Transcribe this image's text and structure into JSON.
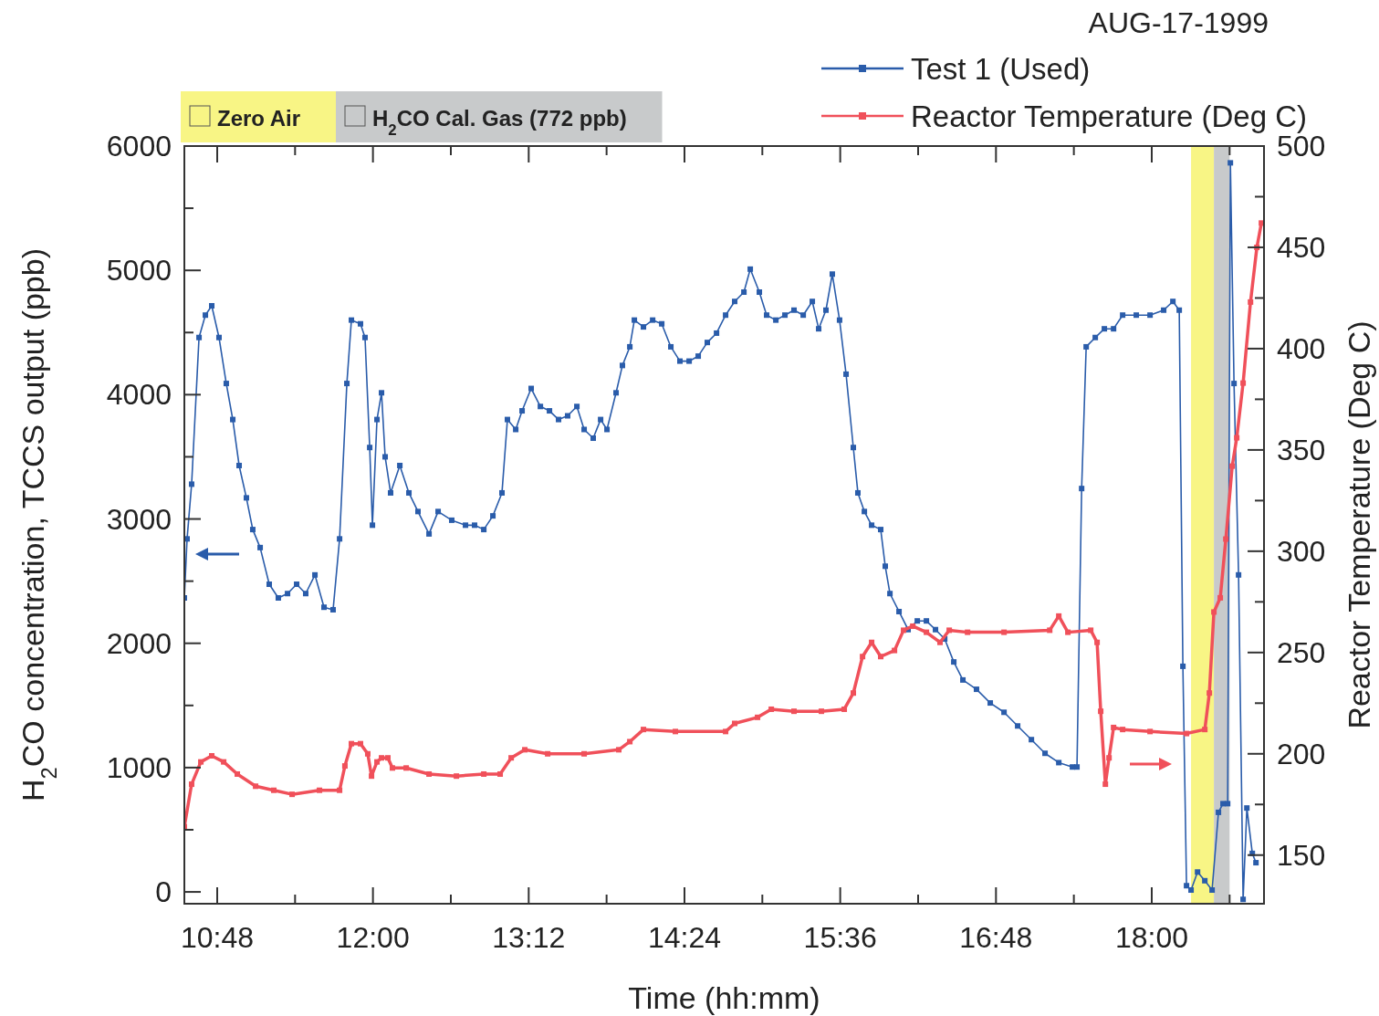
{
  "chart_data": {
    "type": "line",
    "xlabel": "Time (hh:mm)",
    "ylabel": "H$_{2}$CO concentration, TCCS output (ppb)",
    "y2label": "Reactor Temperature (Deg C)",
    "annotations": [
      "AUG-17-1999"
    ],
    "legend": "top right",
    "marker": "square",
    "line_style": "solid",
    "xlim": [
      10.547,
      18.865
    ],
    "xticks": [
      {
        "value": 10.8,
        "label": "10:48"
      },
      {
        "value": 11.4,
        "label": null
      },
      {
        "value": 12,
        "label": "12:00"
      },
      {
        "value": 12.6,
        "label": null
      },
      {
        "value": 13.2,
        "label": "13:12"
      },
      {
        "value": 13.8,
        "label": null
      },
      {
        "value": 14.4,
        "label": "14:24"
      },
      {
        "value": 15,
        "label": null
      },
      {
        "value": 15.6,
        "label": "15:36"
      },
      {
        "value": 16.2,
        "label": null
      },
      {
        "value": 16.8,
        "label": "16:48"
      },
      {
        "value": 17.4,
        "label": null
      },
      {
        "value": 18,
        "label": "18:00"
      },
      {
        "value": 18.6,
        "label": null
      }
    ],
    "ylim": [
      -95,
      6000
    ],
    "yticks": [
      0,
      {
        "value": 500,
        "label": null
      },
      1000,
      {
        "value": 1500,
        "label": null
      },
      2000,
      {
        "value": 2500,
        "label": null
      },
      3000,
      {
        "value": 3500,
        "label": null
      },
      4000,
      {
        "value": 4500,
        "label": null
      },
      5000,
      {
        "value": 5500,
        "label": null
      },
      6000
    ],
    "y2lim": [
      126,
      500
    ],
    "y2ticks": [
      150,
      {
        "value": 175,
        "label": null
      },
      200,
      {
        "value": 225,
        "label": null
      },
      250,
      {
        "value": 275,
        "label": null
      },
      300,
      {
        "value": 325,
        "label": null
      },
      350,
      {
        "value": 375,
        "label": null
      },
      400,
      {
        "value": 425,
        "label": null
      },
      450,
      {
        "value": 475,
        "label": null
      },
      500
    ],
    "bands": [
      {
        "axis": "x",
        "from": 18.303,
        "to": 18.479,
        "label": "Zero Air",
        "color": "#f8f585"
      },
      {
        "axis": "x",
        "from": 18.479,
        "to": 18.6,
        "label": "H$_{2}$CO Cal. Gas (772 ppb)",
        "color": "#c8cacb"
      }
    ],
    "series": [
      {
        "name": "Test 1 (Used)",
        "color": "#2a5caa",
        "x": [
          10.547,
          10.568,
          10.603,
          10.66,
          10.709,
          10.758,
          10.814,
          10.87,
          10.92,
          10.969,
          11.025,
          11.074,
          11.131,
          11.201,
          11.271,
          11.342,
          11.412,
          11.482,
          11.553,
          11.623,
          11.693,
          11.743,
          11.799,
          11.834,
          11.904,
          11.939,
          11.975,
          11.996,
          12.031,
          12.066,
          12.094,
          12.136,
          12.207,
          12.277,
          12.347,
          12.432,
          12.502,
          12.607,
          12.713,
          12.783,
          12.854,
          12.924,
          12.994,
          13.036,
          13.1,
          13.149,
          13.219,
          13.29,
          13.36,
          13.43,
          13.5,
          13.571,
          13.627,
          13.697,
          13.754,
          13.803,
          13.873,
          13.922,
          13.979,
          14.014,
          14.084,
          14.155,
          14.225,
          14.295,
          14.365,
          14.436,
          14.506,
          14.576,
          14.647,
          14.717,
          14.787,
          14.858,
          14.907,
          14.977,
          15.033,
          15.104,
          15.174,
          15.244,
          15.315,
          15.385,
          15.434,
          15.49,
          15.539,
          15.595,
          15.645,
          15.701,
          15.736,
          15.786,
          15.842,
          15.912,
          15.947,
          15.983,
          16.053,
          16.123,
          16.194,
          16.264,
          16.334,
          16.405,
          16.475,
          16.545,
          16.65,
          16.756,
          16.862,
          16.967,
          17.073,
          17.178,
          17.284,
          17.389,
          17.424,
          17.46,
          17.495,
          17.565,
          17.635,
          17.706,
          17.776,
          17.881,
          17.987,
          18.092,
          18.163,
          18.212,
          18.24,
          18.268,
          18.303,
          18.353,
          18.409,
          18.465,
          18.514,
          18.549,
          18.585,
          18.606,
          18.634,
          18.669,
          18.704,
          18.733,
          18.775,
          18.803
        ],
        "values": [
          2365,
          2840,
          3280,
          4460,
          4640,
          4715,
          4460,
          4090,
          3800,
          3430,
          3170,
          2915,
          2770,
          2475,
          2365,
          2400,
          2475,
          2400,
          2550,
          2290,
          2270,
          2840,
          4090,
          4600,
          4570,
          4460,
          3575,
          2950,
          3800,
          4015,
          3500,
          3210,
          3430,
          3210,
          3060,
          2880,
          3060,
          2990,
          2950,
          2950,
          2915,
          3025,
          3210,
          3800,
          3720,
          3870,
          4050,
          3905,
          3870,
          3800,
          3830,
          3905,
          3720,
          3650,
          3800,
          3720,
          4015,
          4235,
          4385,
          4600,
          4545,
          4600,
          4570,
          4385,
          4270,
          4270,
          4310,
          4420,
          4495,
          4640,
          4750,
          4825,
          5010,
          4825,
          4640,
          4600,
          4640,
          4680,
          4640,
          4750,
          4530,
          4680,
          4970,
          4600,
          4165,
          3575,
          3210,
          3060,
          2950,
          2915,
          2620,
          2400,
          2255,
          2110,
          2180,
          2180,
          2110,
          2035,
          1850,
          1705,
          1630,
          1520,
          1445,
          1335,
          1225,
          1115,
          1040,
          1005,
          1005,
          3245,
          4385,
          4460,
          4530,
          4530,
          4640,
          4640,
          4640,
          4680,
          4750,
          4680,
          1815,
          50,
          15,
          160,
          90,
          15,
          640,
          710,
          710,
          5865,
          4090,
          2550,
          -60,
          675,
          310,
          235
        ]
      },
      {
        "name": "Reactor Temperature (Deg C)",
        "color": "#f0505a",
        "axis": "y2",
        "x": [
          10.547,
          10.603,
          10.674,
          10.758,
          10.85,
          10.955,
          11.096,
          11.236,
          11.377,
          11.588,
          11.743,
          11.784,
          11.834,
          11.904,
          11.96,
          11.989,
          12.031,
          12.066,
          12.115,
          12.15,
          12.256,
          12.432,
          12.643,
          12.854,
          12.98,
          13.065,
          13.17,
          13.346,
          13.627,
          13.894,
          13.979,
          14.084,
          14.33,
          14.717,
          14.787,
          14.963,
          15.069,
          15.244,
          15.455,
          15.631,
          15.701,
          15.772,
          15.842,
          15.912,
          16.018,
          16.088,
          16.159,
          16.264,
          16.369,
          16.44,
          16.581,
          16.862,
          17.214,
          17.284,
          17.354,
          17.53,
          17.579,
          17.607,
          17.643,
          17.671,
          17.706,
          17.776,
          17.987,
          18.268,
          18.409,
          18.444,
          18.479,
          18.528,
          18.571,
          18.62,
          18.655,
          18.704,
          18.761,
          18.81,
          18.845
        ],
        "values": [
          164,
          185,
          196,
          199,
          196,
          190,
          184,
          182,
          180,
          182,
          182,
          194,
          205,
          205,
          200,
          189,
          196,
          198,
          198,
          193,
          193,
          190,
          189,
          190,
          190,
          198,
          202,
          200,
          200,
          202,
          206,
          212,
          211,
          211,
          215,
          218,
          222,
          221,
          221,
          222,
          230,
          248,
          255,
          248,
          251,
          261,
          263,
          260,
          255,
          261,
          260,
          260,
          261,
          268,
          260,
          261,
          255,
          221,
          185,
          198,
          213,
          212,
          211,
          210,
          212,
          230,
          270,
          277,
          306,
          342,
          356,
          383,
          423,
          450,
          462
        ]
      }
    ]
  }
}
